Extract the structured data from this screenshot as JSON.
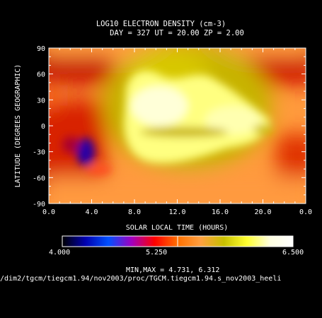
{
  "chart_data": {
    "type": "heatmap",
    "title": "LOG10 ELECTRON DENSITY (cm-3)",
    "subtitle": "DAY = 327   UT = 20.00   ZP =    2.00",
    "xlabel": "SOLAR LOCAL TIME (HOURS)",
    "ylabel": "LATITUDE (DEGREES GEOGRAPHIC)",
    "xlim": [
      0,
      24
    ],
    "ylim": [
      -90,
      90
    ],
    "xticks": [
      "0.0",
      "4.0",
      "8.0",
      "12.0",
      "16.0",
      "20.0",
      "0.0"
    ],
    "yticks": [
      "90",
      "60",
      "30",
      "0",
      "-30",
      "-60",
      "-90"
    ],
    "zlim": [
      4.0,
      6.5
    ],
    "colorbar": {
      "min_label": "4.000",
      "mid_label": "5.250",
      "max_label": "6.500",
      "colors": [
        "#000000",
        "#0000b0",
        "#0050ff",
        "#a000c0",
        "#ff0000",
        "#ff7000",
        "#ffa040",
        "#c8c000",
        "#ffff30",
        "#ffffe0",
        "#ffffff"
      ]
    },
    "minmax_text": "MIN,MAX =        4.731,     6.312",
    "min": 4.731,
    "max": 6.312,
    "footer": "/dim2/tgcm/tiegcm1.94/nov2003/proc/TGCM.tiegcm1.94.s_nov2003_heeli"
  }
}
